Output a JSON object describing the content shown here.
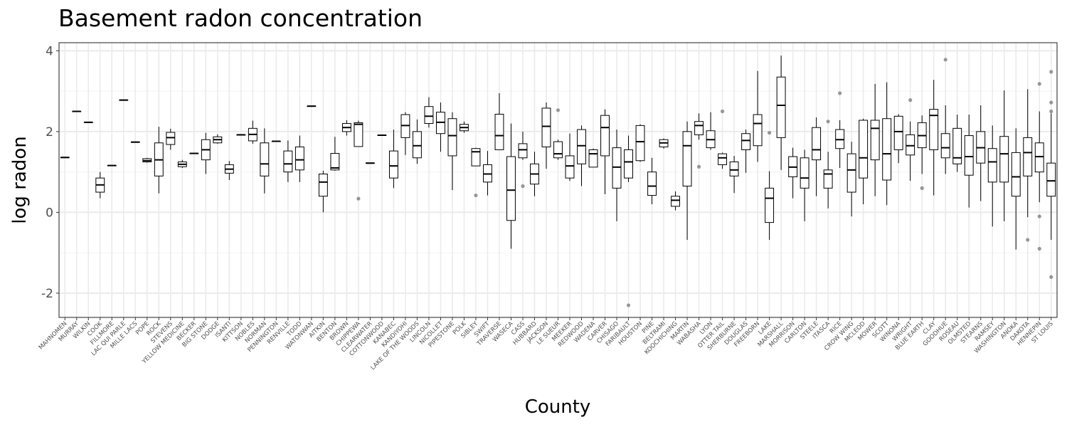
{
  "chart_data": {
    "type": "box",
    "title": "Basement radon concentration",
    "xlabel": "County",
    "ylabel": "log radon",
    "ylim": [
      -2.6,
      4.2
    ],
    "y_ticks": [
      -2,
      0,
      2,
      4
    ],
    "y_tick_labels": [
      "-2",
      "0",
      "2",
      "4"
    ],
    "grid": true,
    "legend": "none",
    "colors": {
      "panel_border": "#333333",
      "grid_major": "#ebebeb",
      "grid_minor": "#f5f5f5",
      "box": "#000000",
      "outlier": "#777777"
    },
    "categories": [
      "MAHNOMEN",
      "MURRAY",
      "WILKIN",
      "COOK",
      "FILLMORE",
      "LAC QUI PARLE",
      "MILLE LACS",
      "POPE",
      "ROCK",
      "STEVENS",
      "YELLOW MEDICINE",
      "BECKER",
      "BIG STONE",
      "DODGE",
      "ISANTI",
      "KITTSON",
      "NOBLES",
      "NORMAN",
      "PENNINGTON",
      "RENVILLE",
      "TODD",
      "WATONWAN",
      "AITKIN",
      "BENTON",
      "BROWN",
      "CHIPPEWA",
      "CLEARWATER",
      "COTTONWOOD",
      "KANABEC",
      "KANDIYOHI",
      "LAKE OF THE WOODS",
      "LINCOLN",
      "NICOLLET",
      "PIPESTONE",
      "POLK",
      "SIBLEY",
      "SWIFT",
      "TRAVERSE",
      "WASECA",
      "CASS",
      "HUBBARD",
      "JACKSON",
      "LE SUEUR",
      "MEEKER",
      "REDWOOD",
      "WADENA",
      "CARVER",
      "CHISAGO",
      "FARIBAULT",
      "HOUSTON",
      "PINE",
      "BELTRAMI",
      "KOOCHICHING",
      "MARTIN",
      "WABASHA",
      "LYON",
      "OTTER TAIL",
      "SHERBURNE",
      "DOUGLAS",
      "FREEBORN",
      "LAKE",
      "MARSHALL",
      "MORRISON",
      "CARLTON",
      "STEELE",
      "ITASCA",
      "RICE",
      "CROW WING",
      "MCLEOD",
      "MOWER",
      "SCOTT",
      "WINONA",
      "WRIGHT",
      "BLUE EARTH",
      "CLAY",
      "GOODHUE",
      "ROSEAU",
      "OLMSTED",
      "STEARNS",
      "RAMSEY",
      "WASHINGTON",
      "ANOKA",
      "DAKOTA",
      "HENNEPIN",
      "ST LOUIS"
    ],
    "boxes": [
      {
        "min": 1.36,
        "q1": 1.36,
        "median": 1.36,
        "q3": 1.36,
        "max": 1.36,
        "outliers": []
      },
      {
        "min": 2.5,
        "q1": 2.5,
        "median": 2.5,
        "q3": 2.5,
        "max": 2.5,
        "outliers": []
      },
      {
        "min": 2.23,
        "q1": 2.23,
        "median": 2.23,
        "q3": 2.23,
        "max": 2.23,
        "outliers": []
      },
      {
        "min": 0.35,
        "q1": 0.5,
        "median": 0.68,
        "q3": 0.85,
        "max": 1.0,
        "outliers": []
      },
      {
        "min": 1.16,
        "q1": 1.16,
        "median": 1.16,
        "q3": 1.16,
        "max": 1.16,
        "outliers": []
      },
      {
        "min": 2.78,
        "q1": 2.78,
        "median": 2.78,
        "q3": 2.78,
        "max": 2.78,
        "outliers": []
      },
      {
        "min": 1.74,
        "q1": 1.74,
        "median": 1.74,
        "q3": 1.74,
        "max": 1.74,
        "outliers": []
      },
      {
        "min": 1.23,
        "q1": 1.25,
        "median": 1.28,
        "q3": 1.33,
        "max": 1.35,
        "outliers": []
      },
      {
        "min": 0.47,
        "q1": 0.9,
        "median": 1.3,
        "q3": 1.72,
        "max": 2.12,
        "outliers": []
      },
      {
        "min": 1.55,
        "q1": 1.68,
        "median": 1.85,
        "q3": 1.98,
        "max": 2.07,
        "outliers": []
      },
      {
        "min": 1.1,
        "q1": 1.13,
        "median": 1.19,
        "q3": 1.25,
        "max": 1.3,
        "outliers": []
      },
      {
        "min": 1.46,
        "q1": 1.46,
        "median": 1.46,
        "q3": 1.46,
        "max": 1.46,
        "outliers": []
      },
      {
        "min": 0.95,
        "q1": 1.3,
        "median": 1.55,
        "q3": 1.8,
        "max": 1.97,
        "outliers": []
      },
      {
        "min": 1.7,
        "q1": 1.72,
        "median": 1.8,
        "q3": 1.87,
        "max": 1.93,
        "outliers": []
      },
      {
        "min": 0.8,
        "q1": 0.97,
        "median": 1.07,
        "q3": 1.18,
        "max": 1.27,
        "outliers": []
      },
      {
        "min": 1.92,
        "q1": 1.92,
        "median": 1.92,
        "q3": 1.92,
        "max": 1.92,
        "outliers": []
      },
      {
        "min": 1.7,
        "q1": 1.77,
        "median": 1.93,
        "q3": 2.08,
        "max": 2.27,
        "outliers": []
      },
      {
        "min": 0.47,
        "q1": 0.9,
        "median": 1.2,
        "q3": 1.72,
        "max": 2.08,
        "outliers": []
      },
      {
        "min": 1.76,
        "q1": 1.76,
        "median": 1.76,
        "q3": 1.76,
        "max": 1.76,
        "outliers": []
      },
      {
        "min": 0.75,
        "q1": 1.0,
        "median": 1.2,
        "q3": 1.52,
        "max": 1.78,
        "outliers": []
      },
      {
        "min": 0.75,
        "q1": 1.05,
        "median": 1.3,
        "q3": 1.62,
        "max": 1.9,
        "outliers": []
      },
      {
        "min": 2.63,
        "q1": 2.63,
        "median": 2.63,
        "q3": 2.63,
        "max": 2.63,
        "outliers": []
      },
      {
        "min": 0.0,
        "q1": 0.4,
        "median": 0.75,
        "q3": 0.95,
        "max": 1.03,
        "outliers": []
      },
      {
        "min": 1.03,
        "q1": 1.05,
        "median": 1.1,
        "q3": 1.46,
        "max": 1.87,
        "outliers": []
      },
      {
        "min": 1.9,
        "q1": 2.0,
        "median": 2.1,
        "q3": 2.2,
        "max": 2.28,
        "outliers": []
      },
      {
        "min": 1.63,
        "q1": 1.63,
        "median": 2.18,
        "q3": 2.22,
        "max": 2.27,
        "outliers": [
          0.34
        ]
      },
      {
        "min": 1.22,
        "q1": 1.22,
        "median": 1.22,
        "q3": 1.22,
        "max": 1.22,
        "outliers": []
      },
      {
        "min": 1.91,
        "q1": 1.91,
        "median": 1.91,
        "q3": 1.91,
        "max": 1.91,
        "outliers": []
      },
      {
        "min": 0.6,
        "q1": 0.85,
        "median": 1.15,
        "q3": 1.52,
        "max": 2.05,
        "outliers": []
      },
      {
        "min": 1.42,
        "q1": 1.85,
        "median": 2.15,
        "q3": 2.42,
        "max": 2.48,
        "outliers": []
      },
      {
        "min": 1.2,
        "q1": 1.35,
        "median": 1.65,
        "q3": 2.0,
        "max": 2.3,
        "outliers": []
      },
      {
        "min": 2.1,
        "q1": 2.2,
        "median": 2.38,
        "q3": 2.62,
        "max": 2.85,
        "outliers": []
      },
      {
        "min": 1.5,
        "q1": 1.95,
        "median": 2.23,
        "q3": 2.48,
        "max": 2.72,
        "outliers": []
      },
      {
        "min": 0.55,
        "q1": 1.4,
        "median": 1.9,
        "q3": 2.32,
        "max": 2.48,
        "outliers": []
      },
      {
        "min": 1.97,
        "q1": 2.02,
        "median": 2.1,
        "q3": 2.18,
        "max": 2.25,
        "outliers": []
      },
      {
        "min": 1.15,
        "q1": 1.15,
        "median": 1.5,
        "q3": 1.58,
        "max": 1.6,
        "outliers": [
          0.42
        ]
      },
      {
        "min": 0.42,
        "q1": 0.75,
        "median": 0.95,
        "q3": 1.18,
        "max": 1.52,
        "outliers": []
      },
      {
        "min": 1.55,
        "q1": 1.55,
        "median": 1.9,
        "q3": 2.43,
        "max": 2.95,
        "outliers": []
      },
      {
        "min": -0.9,
        "q1": -0.2,
        "median": 0.55,
        "q3": 1.38,
        "max": 2.2,
        "outliers": []
      },
      {
        "min": 1.3,
        "q1": 1.35,
        "median": 1.55,
        "q3": 1.7,
        "max": 2.0,
        "outliers": [
          0.65
        ]
      },
      {
        "min": 0.4,
        "q1": 0.7,
        "median": 0.95,
        "q3": 1.2,
        "max": 1.5,
        "outliers": []
      },
      {
        "min": 1.08,
        "q1": 1.62,
        "median": 2.13,
        "q3": 2.58,
        "max": 2.72,
        "outliers": []
      },
      {
        "min": 1.3,
        "q1": 1.35,
        "median": 1.45,
        "q3": 1.75,
        "max": 1.8,
        "outliers": [
          2.53
        ]
      },
      {
        "min": 0.78,
        "q1": 0.85,
        "median": 1.15,
        "q3": 1.4,
        "max": 1.95,
        "outliers": []
      },
      {
        "min": 0.65,
        "q1": 1.2,
        "median": 1.65,
        "q3": 2.05,
        "max": 2.15,
        "outliers": []
      },
      {
        "min": 1.12,
        "q1": 1.12,
        "median": 1.45,
        "q3": 1.55,
        "max": 1.58,
        "outliers": []
      },
      {
        "min": 0.45,
        "q1": 1.4,
        "median": 2.1,
        "q3": 2.4,
        "max": 2.55,
        "outliers": []
      },
      {
        "min": -0.22,
        "q1": 0.6,
        "median": 1.12,
        "q3": 1.6,
        "max": 2.05,
        "outliers": []
      },
      {
        "min": 0.75,
        "q1": 0.85,
        "median": 1.25,
        "q3": 1.55,
        "max": 1.9,
        "outliers": [
          -2.3
        ]
      },
      {
        "min": 1.25,
        "q1": 1.28,
        "median": 1.75,
        "q3": 2.15,
        "max": 2.18,
        "outliers": []
      },
      {
        "min": 0.2,
        "q1": 0.42,
        "median": 0.65,
        "q3": 1.0,
        "max": 1.35,
        "outliers": []
      },
      {
        "min": 1.58,
        "q1": 1.62,
        "median": 1.72,
        "q3": 1.8,
        "max": 1.83,
        "outliers": []
      },
      {
        "min": 0.05,
        "q1": 0.15,
        "median": 0.3,
        "q3": 0.4,
        "max": 0.52,
        "outliers": []
      },
      {
        "min": -0.68,
        "q1": 0.65,
        "median": 1.65,
        "q3": 2.0,
        "max": 2.25,
        "outliers": []
      },
      {
        "min": 1.8,
        "q1": 1.92,
        "median": 2.15,
        "q3": 2.25,
        "max": 2.45,
        "outliers": [
          1.13
        ]
      },
      {
        "min": 1.55,
        "q1": 1.6,
        "median": 1.8,
        "q3": 2.02,
        "max": 2.48,
        "outliers": []
      },
      {
        "min": 1.08,
        "q1": 1.18,
        "median": 1.35,
        "q3": 1.45,
        "max": 1.48,
        "outliers": [
          2.5
        ]
      },
      {
        "min": 0.48,
        "q1": 0.9,
        "median": 1.05,
        "q3": 1.25,
        "max": 1.4,
        "outliers": []
      },
      {
        "min": 0.98,
        "q1": 1.55,
        "median": 1.78,
        "q3": 1.95,
        "max": 2.05,
        "outliers": []
      },
      {
        "min": 1.25,
        "q1": 1.65,
        "median": 2.2,
        "q3": 2.42,
        "max": 3.5,
        "outliers": []
      },
      {
        "min": -0.68,
        "q1": -0.25,
        "median": 0.35,
        "q3": 0.6,
        "max": 1.02,
        "outliers": [
          1.97
        ]
      },
      {
        "min": 1.05,
        "q1": 1.85,
        "median": 2.65,
        "q3": 3.35,
        "max": 3.88,
        "outliers": []
      },
      {
        "min": 0.35,
        "q1": 0.88,
        "median": 1.12,
        "q3": 1.38,
        "max": 1.6,
        "outliers": []
      },
      {
        "min": -0.22,
        "q1": 0.6,
        "median": 0.85,
        "q3": 1.35,
        "max": 1.55,
        "outliers": []
      },
      {
        "min": 0.4,
        "q1": 1.3,
        "median": 1.55,
        "q3": 2.1,
        "max": 2.35,
        "outliers": []
      },
      {
        "min": 0.1,
        "q1": 0.6,
        "median": 0.95,
        "q3": 1.05,
        "max": 1.5,
        "outliers": [
          2.25
        ]
      },
      {
        "min": 1.1,
        "q1": 1.58,
        "median": 1.8,
        "q3": 2.05,
        "max": 2.28,
        "outliers": [
          2.95
        ]
      },
      {
        "min": -0.1,
        "q1": 0.5,
        "median": 1.05,
        "q3": 1.45,
        "max": 1.75,
        "outliers": []
      },
      {
        "min": 0.2,
        "q1": 0.85,
        "median": 1.35,
        "q3": 2.28,
        "max": 2.32,
        "outliers": []
      },
      {
        "min": 0.4,
        "q1": 1.3,
        "median": 2.08,
        "q3": 2.28,
        "max": 3.18,
        "outliers": []
      },
      {
        "min": 0.18,
        "q1": 0.8,
        "median": 1.45,
        "q3": 2.32,
        "max": 3.22,
        "outliers": []
      },
      {
        "min": 1.22,
        "q1": 1.55,
        "median": 2.0,
        "q3": 2.38,
        "max": 2.43,
        "outliers": []
      },
      {
        "min": 0.78,
        "q1": 1.42,
        "median": 1.65,
        "q3": 1.92,
        "max": 2.25,
        "outliers": [
          2.78
        ]
      },
      {
        "min": 0.95,
        "q1": 1.6,
        "median": 1.9,
        "q3": 2.22,
        "max": 2.4,
        "outliers": [
          0.6
        ]
      },
      {
        "min": 0.42,
        "q1": 1.55,
        "median": 2.4,
        "q3": 2.55,
        "max": 3.28,
        "outliers": []
      },
      {
        "min": 0.95,
        "q1": 1.35,
        "median": 1.6,
        "q3": 1.95,
        "max": 2.65,
        "outliers": [
          3.78
        ]
      },
      {
        "min": 1.0,
        "q1": 1.2,
        "median": 1.35,
        "q3": 2.08,
        "max": 2.42,
        "outliers": []
      },
      {
        "min": 0.12,
        "q1": 0.92,
        "median": 1.38,
        "q3": 1.9,
        "max": 2.42,
        "outliers": []
      },
      {
        "min": 0.28,
        "q1": 1.22,
        "median": 1.6,
        "q3": 2.0,
        "max": 2.65,
        "outliers": []
      },
      {
        "min": -0.35,
        "q1": 0.75,
        "median": 1.25,
        "q3": 1.58,
        "max": 2.15,
        "outliers": []
      },
      {
        "min": -0.22,
        "q1": 0.75,
        "median": 1.45,
        "q3": 1.88,
        "max": 3.02,
        "outliers": []
      },
      {
        "min": -0.92,
        "q1": 0.4,
        "median": 0.88,
        "q3": 1.48,
        "max": 2.08,
        "outliers": []
      },
      {
        "min": -0.12,
        "q1": 0.9,
        "median": 1.48,
        "q3": 1.85,
        "max": 3.05,
        "outliers": [
          -0.68
        ]
      },
      {
        "min": 0.25,
        "q1": 1.0,
        "median": 1.38,
        "q3": 1.72,
        "max": 2.5,
        "outliers": [
          -0.1,
          -0.9,
          3.18
        ]
      },
      {
        "min": -0.68,
        "q1": 0.4,
        "median": 0.78,
        "q3": 1.22,
        "max": 2.45,
        "outliers": [
          3.48,
          2.72,
          2.5,
          -1.6
        ]
      }
    ]
  }
}
